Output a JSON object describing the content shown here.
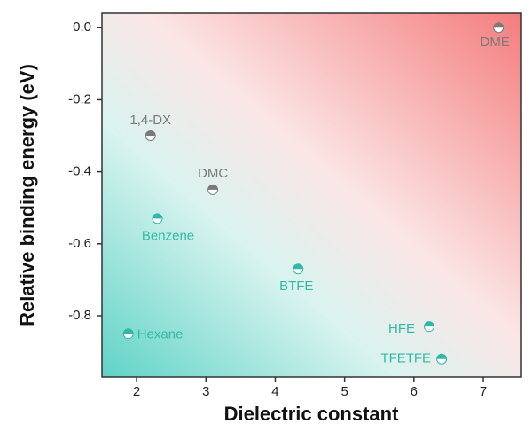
{
  "chart_data": {
    "type": "scatter",
    "xlabel": "Dielectric constant",
    "ylabel": "Relative binding energy (eV)",
    "labels": [
      "1,4-DX",
      "DMC",
      "DME",
      "Benzene",
      "BTFE",
      "Hexane",
      "HFE",
      "TFETFE"
    ],
    "x": [
      2.2,
      3.1,
      7.22,
      2.3,
      4.33,
      1.88,
      6.22,
      6.4
    ],
    "y": [
      -0.3,
      -0.45,
      0.0,
      -0.53,
      -0.67,
      -0.85,
      -0.83,
      -0.92
    ],
    "colors": [
      "#7a7a7a",
      "#7a7a7a",
      "#7a7a7a",
      "#33b8a6",
      "#33b8a6",
      "#33b8a6",
      "#33b8a6",
      "#33b8a6"
    ],
    "xlim": [
      1.5,
      7.55
    ],
    "xticks": [
      2,
      3,
      4,
      5,
      6,
      7
    ],
    "ylim": [
      -0.97,
      0.04
    ],
    "yticks": [
      {
        "value": 0,
        "label": "0.0"
      },
      -0.2,
      -0.4,
      -0.6,
      -0.8
    ]
  }
}
